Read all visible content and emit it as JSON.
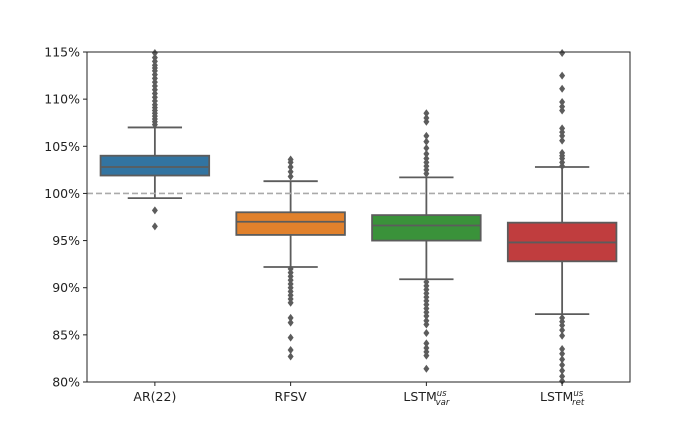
{
  "chart_data": {
    "type": "box",
    "title": "",
    "xlabel": "",
    "ylabel": "",
    "ylim": [
      80,
      115
    ],
    "yticks": [
      80,
      85,
      90,
      95,
      100,
      105,
      110,
      115
    ],
    "ytick_format": "{v}%",
    "reference_line": {
      "y": 100,
      "style": "dashed",
      "color": "#aaaaaa"
    },
    "grid": false,
    "edge_color": "#5c5c5c",
    "categories": [
      {
        "label": "AR(22)",
        "base": "AR(22)",
        "sup": "",
        "sub": "",
        "color": "#3274a1",
        "q1": 101.9,
        "median": 102.8,
        "q3": 104.0,
        "whisker_low": 99.5,
        "whisker_high": 107.0,
        "outliers": [
          98.2,
          96.5,
          107.3,
          107.6,
          107.9,
          108.2,
          108.5,
          108.8,
          109.1,
          109.4,
          109.8,
          110.2,
          110.6,
          111.0,
          111.4,
          111.8,
          112.2,
          112.6,
          113.0,
          113.3,
          113.6,
          114.0,
          114.4,
          114.9
        ]
      },
      {
        "label": "RFSV",
        "base": "RFSV",
        "sup": "",
        "sub": "",
        "color": "#e1812c",
        "q1": 95.6,
        "median": 97.0,
        "q3": 98.0,
        "whisker_low": 92.2,
        "whisker_high": 101.3,
        "outliers": [
          101.8,
          102.3,
          102.8,
          103.3,
          103.6,
          92.0,
          91.6,
          91.2,
          90.8,
          90.4,
          90.0,
          89.6,
          89.2,
          88.8,
          88.4,
          86.8,
          86.3,
          84.7,
          83.4,
          82.7
        ]
      },
      {
        "label": "LSTM^us_var",
        "base": "LSTM",
        "sup": "us",
        "sub": "var",
        "color": "#3a923a",
        "q1": 95.0,
        "median": 96.6,
        "q3": 97.7,
        "whisker_low": 90.9,
        "whisker_high": 101.7,
        "outliers": [
          102.1,
          102.5,
          102.9,
          103.3,
          103.7,
          104.2,
          104.8,
          105.5,
          106.1,
          107.6,
          108.0,
          108.5,
          90.6,
          90.2,
          89.8,
          89.4,
          89.0,
          88.6,
          88.2,
          87.8,
          87.4,
          87.0,
          86.5,
          86.1,
          85.2,
          84.1,
          83.6,
          83.2,
          82.8,
          81.4
        ]
      },
      {
        "label": "LSTM^us_ret",
        "base": "LSTM",
        "sup": "us",
        "sub": "ret",
        "color": "#c03d3e",
        "q1": 92.8,
        "median": 94.8,
        "q3": 96.9,
        "whisker_low": 87.2,
        "whisker_high": 102.8,
        "outliers": [
          102.9,
          103.3,
          103.7,
          104.0,
          104.3,
          105.6,
          106.1,
          106.5,
          106.9,
          108.8,
          109.2,
          109.7,
          111.1,
          112.5,
          114.9,
          86.8,
          86.4,
          86.0,
          85.5,
          84.9,
          83.5,
          83.0,
          82.4,
          81.8,
          81.2,
          80.6,
          80.1
        ]
      }
    ]
  }
}
